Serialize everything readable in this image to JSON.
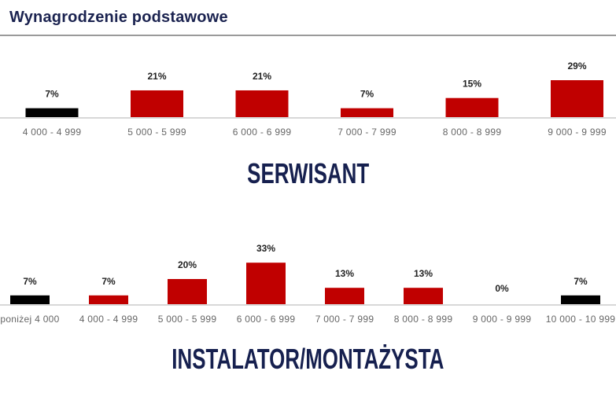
{
  "title": "Wynagrodzenie podstawowe",
  "colors": {
    "highlight": "#000000",
    "bar": "#c00000",
    "title": "#1b2350"
  },
  "chart_data": [
    {
      "type": "bar",
      "title": "SERWISANT",
      "categories": [
        "4 000 - 4 999",
        "5 000 - 5 999",
        "6 000 - 6 999",
        "7 000 - 7 999",
        "8 000 - 8 999",
        "9 000 - 9 999"
      ],
      "values": [
        7,
        21,
        21,
        7,
        15,
        29
      ],
      "data_labels": [
        "7%",
        "21%",
        "21%",
        "7%",
        "15%",
        "29%"
      ],
      "bar_colors": [
        "#000000",
        "#c00000",
        "#c00000",
        "#c00000",
        "#c00000",
        "#c00000"
      ],
      "unit": "%",
      "grid": false
    },
    {
      "type": "bar",
      "title": "INSTALATOR/MONTAŻYSTA",
      "categories": [
        "poniżej 4 000",
        "4 000 - 4 999",
        "5 000 - 5 999",
        "6 000 - 6 999",
        "7 000 - 7 999",
        "8 000 - 8 999",
        "9 000 - 9 999",
        "10 000 - 10 999"
      ],
      "values": [
        7,
        7,
        20,
        33,
        13,
        13,
        0,
        7
      ],
      "data_labels": [
        "7%",
        "7%",
        "20%",
        "33%",
        "13%",
        "13%",
        "0%",
        "7%"
      ],
      "bar_colors": [
        "#000000",
        "#c00000",
        "#c00000",
        "#c00000",
        "#c00000",
        "#c00000",
        "#c00000",
        "#000000"
      ],
      "unit": "%",
      "grid": false
    }
  ]
}
